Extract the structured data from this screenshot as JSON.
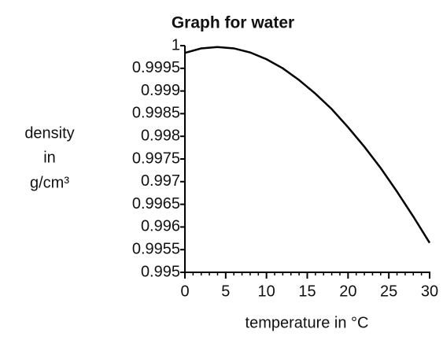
{
  "chart_data": {
    "type": "line",
    "title": "Graph for water",
    "xlabel": "temperature in °C",
    "ylabel": [
      "density",
      "in",
      "g/cm³"
    ],
    "x": [
      0,
      2,
      4,
      6,
      8,
      10,
      12,
      14,
      16,
      18,
      20,
      22,
      24,
      26,
      28,
      30
    ],
    "series": [
      {
        "color": "#000000",
        "values": [
          0.99984,
          0.99994,
          0.99997,
          0.99994,
          0.99985,
          0.9997,
          0.9995,
          0.99924,
          0.99894,
          0.9986,
          0.9982,
          0.99777,
          0.9973,
          0.99678,
          0.99623,
          0.99565
        ]
      }
    ],
    "xlim": [
      0,
      30
    ],
    "xticks": [
      0,
      5,
      10,
      15,
      20,
      25,
      30
    ],
    "ylim": [
      0.995,
      1
    ],
    "yticks": [
      0.995,
      0.9955,
      0.996,
      0.9965,
      0.997,
      0.9975,
      0.998,
      0.9985,
      0.999,
      0.9995,
      1
    ]
  }
}
